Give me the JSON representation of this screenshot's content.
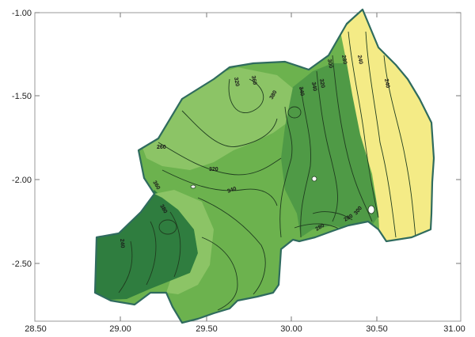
{
  "map": {
    "x_axis": {
      "ticks": [
        {
          "value": 28.5,
          "label": "28.50"
        },
        {
          "value": 29.0,
          "label": "29.00"
        },
        {
          "value": 29.5,
          "label": "29.50"
        },
        {
          "value": 30.0,
          "label": "30.00"
        },
        {
          "value": 30.5,
          "label": "30.50"
        },
        {
          "value": 31.0,
          "label": "31.00"
        }
      ]
    },
    "y_axis": {
      "ticks": [
        {
          "value": -1.0,
          "label": "-1.00"
        },
        {
          "value": -1.5,
          "label": "-1.50"
        },
        {
          "value": -2.0,
          "label": "-2.00"
        },
        {
          "value": -2.5,
          "label": "-2.50"
        }
      ]
    },
    "colors": {
      "darkest_green": "#2f7d3f",
      "dark_green": "#4f9a46",
      "mid_green": "#6cb24e",
      "light_green": "#8cc466",
      "yellow": "#f4eb86",
      "outline": "#2f6b5e",
      "contour": "#1f3d1f"
    },
    "contour_labels": [
      "240",
      "240",
      "240",
      "260",
      "280",
      "280",
      "280",
      "300",
      "300",
      "320",
      "320",
      "320",
      "340",
      "340",
      "340",
      "360",
      "360",
      "380",
      "380"
    ]
  }
}
